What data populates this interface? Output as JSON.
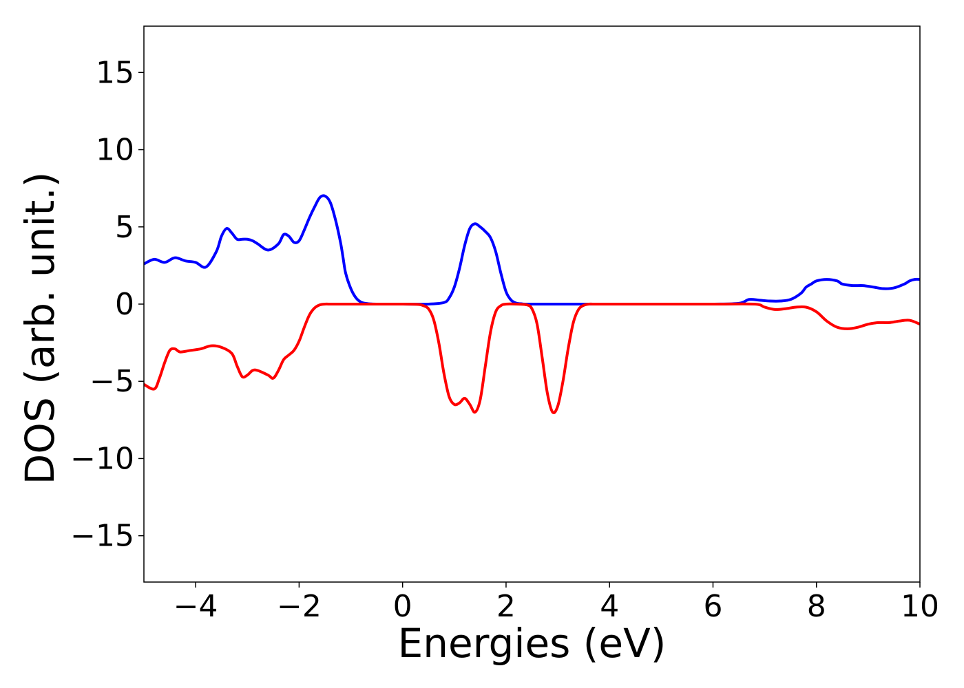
{
  "chart_data": {
    "type": "line",
    "title": "",
    "xlabel": "Energies (eV)",
    "ylabel": "DOS (arb. unit.)",
    "xlim": [
      -5,
      10
    ],
    "ylim": [
      -18,
      18
    ],
    "xticks": [
      -4,
      -2,
      0,
      2,
      4,
      6,
      8,
      10
    ],
    "xtick_labels": [
      "−4",
      "−2",
      "0",
      "2",
      "4",
      "6",
      "8",
      "10"
    ],
    "yticks": [
      15,
      10,
      5,
      0,
      -5,
      -10,
      -15
    ],
    "ytick_labels": [
      "15",
      "10",
      "5",
      "0",
      "−5",
      "−10",
      "−15"
    ],
    "grid": false,
    "legend": "none",
    "series": [
      {
        "color": "#0000ff",
        "x": [
          -5.0,
          -4.8,
          -4.6,
          -4.4,
          -4.2,
          -4.0,
          -3.8,
          -3.6,
          -3.5,
          -3.4,
          -3.3,
          -3.2,
          -3.1,
          -3.0,
          -2.9,
          -2.8,
          -2.6,
          -2.4,
          -2.3,
          -2.2,
          -2.1,
          -2.0,
          -1.9,
          -1.8,
          -1.7,
          -1.6,
          -1.5,
          -1.4,
          -1.3,
          -1.2,
          -1.15,
          -1.1,
          -1.0,
          -0.9,
          -0.8,
          -0.7,
          -0.6,
          -0.5,
          -0.4,
          -0.3,
          -0.2,
          0.0,
          0.5,
          0.8,
          0.9,
          1.0,
          1.1,
          1.2,
          1.3,
          1.4,
          1.5,
          1.6,
          1.7,
          1.8,
          1.9,
          2.0,
          2.1,
          2.2,
          2.3,
          2.4,
          3.0,
          4.0,
          5.0,
          6.0,
          6.5,
          6.7,
          6.9,
          7.1,
          7.3,
          7.5,
          7.7,
          7.8,
          7.9,
          8.0,
          8.2,
          8.4,
          8.5,
          8.7,
          8.9,
          9.1,
          9.3,
          9.5,
          9.7,
          9.8,
          9.9,
          10.0
        ],
        "y": [
          2.6,
          2.9,
          2.7,
          3.0,
          2.8,
          2.7,
          2.4,
          3.4,
          4.4,
          4.9,
          4.6,
          4.2,
          4.2,
          4.2,
          4.1,
          3.9,
          3.5,
          3.9,
          4.5,
          4.4,
          4.0,
          4.1,
          4.8,
          5.6,
          6.3,
          6.9,
          7.0,
          6.6,
          5.5,
          4.0,
          3.0,
          2.0,
          1.0,
          0.4,
          0.12,
          0.04,
          0.01,
          0.0,
          0.0,
          0.0,
          0.0,
          0.0,
          0.0,
          0.1,
          0.4,
          1.1,
          2.3,
          3.8,
          4.9,
          5.2,
          5.0,
          4.7,
          4.3,
          3.4,
          2.0,
          0.8,
          0.25,
          0.06,
          0.02,
          0.0,
          0.0,
          0.0,
          0.0,
          0.0,
          0.05,
          0.3,
          0.25,
          0.2,
          0.2,
          0.3,
          0.7,
          1.1,
          1.3,
          1.5,
          1.6,
          1.5,
          1.3,
          1.2,
          1.2,
          1.1,
          1.0,
          1.05,
          1.3,
          1.5,
          1.6,
          1.6
        ]
      },
      {
        "color": "#ff0000",
        "x": [
          -5.0,
          -4.8,
          -4.7,
          -4.6,
          -4.5,
          -4.4,
          -4.3,
          -4.1,
          -3.9,
          -3.7,
          -3.5,
          -3.3,
          -3.2,
          -3.1,
          -3.0,
          -2.9,
          -2.8,
          -2.6,
          -2.5,
          -2.4,
          -2.3,
          -2.2,
          -2.1,
          -2.0,
          -1.9,
          -1.8,
          -1.7,
          -1.6,
          -1.5,
          -1.4,
          -1.3,
          -1.2,
          -1.1,
          -1.0,
          0.0,
          0.3,
          0.4,
          0.5,
          0.6,
          0.7,
          0.8,
          0.9,
          1.0,
          1.1,
          1.2,
          1.3,
          1.4,
          1.5,
          1.6,
          1.7,
          1.8,
          1.9,
          2.0,
          2.2,
          2.4,
          2.5,
          2.6,
          2.7,
          2.8,
          2.9,
          3.0,
          3.1,
          3.2,
          3.3,
          3.4,
          3.5,
          3.6,
          3.7,
          4.0,
          5.0,
          6.0,
          6.8,
          7.0,
          7.2,
          7.4,
          7.6,
          7.8,
          8.0,
          8.2,
          8.4,
          8.6,
          8.8,
          9.0,
          9.2,
          9.4,
          9.6,
          9.8,
          10.0
        ],
        "y": [
          -5.2,
          -5.5,
          -4.8,
          -3.8,
          -3.0,
          -2.9,
          -3.1,
          -3.0,
          -2.9,
          -2.7,
          -2.8,
          -3.2,
          -4.0,
          -4.7,
          -4.6,
          -4.3,
          -4.3,
          -4.6,
          -4.8,
          -4.3,
          -3.6,
          -3.3,
          -3.0,
          -2.4,
          -1.5,
          -0.7,
          -0.25,
          -0.05,
          0.0,
          0.0,
          0.0,
          0.0,
          0.0,
          0.0,
          0.0,
          -0.02,
          -0.1,
          -0.3,
          -1.0,
          -2.5,
          -4.5,
          -6.0,
          -6.5,
          -6.4,
          -6.1,
          -6.5,
          -7.0,
          -6.2,
          -4.0,
          -1.8,
          -0.5,
          -0.1,
          0.0,
          0.0,
          -0.05,
          -0.3,
          -1.3,
          -3.5,
          -5.8,
          -7.0,
          -6.6,
          -5.0,
          -2.9,
          -1.2,
          -0.35,
          -0.08,
          0.0,
          0.0,
          0.0,
          0.0,
          0.0,
          0.0,
          -0.2,
          -0.35,
          -0.3,
          -0.2,
          -0.2,
          -0.5,
          -1.1,
          -1.5,
          -1.6,
          -1.5,
          -1.3,
          -1.2,
          -1.2,
          -1.1,
          -1.05,
          -1.3
        ]
      }
    ]
  }
}
